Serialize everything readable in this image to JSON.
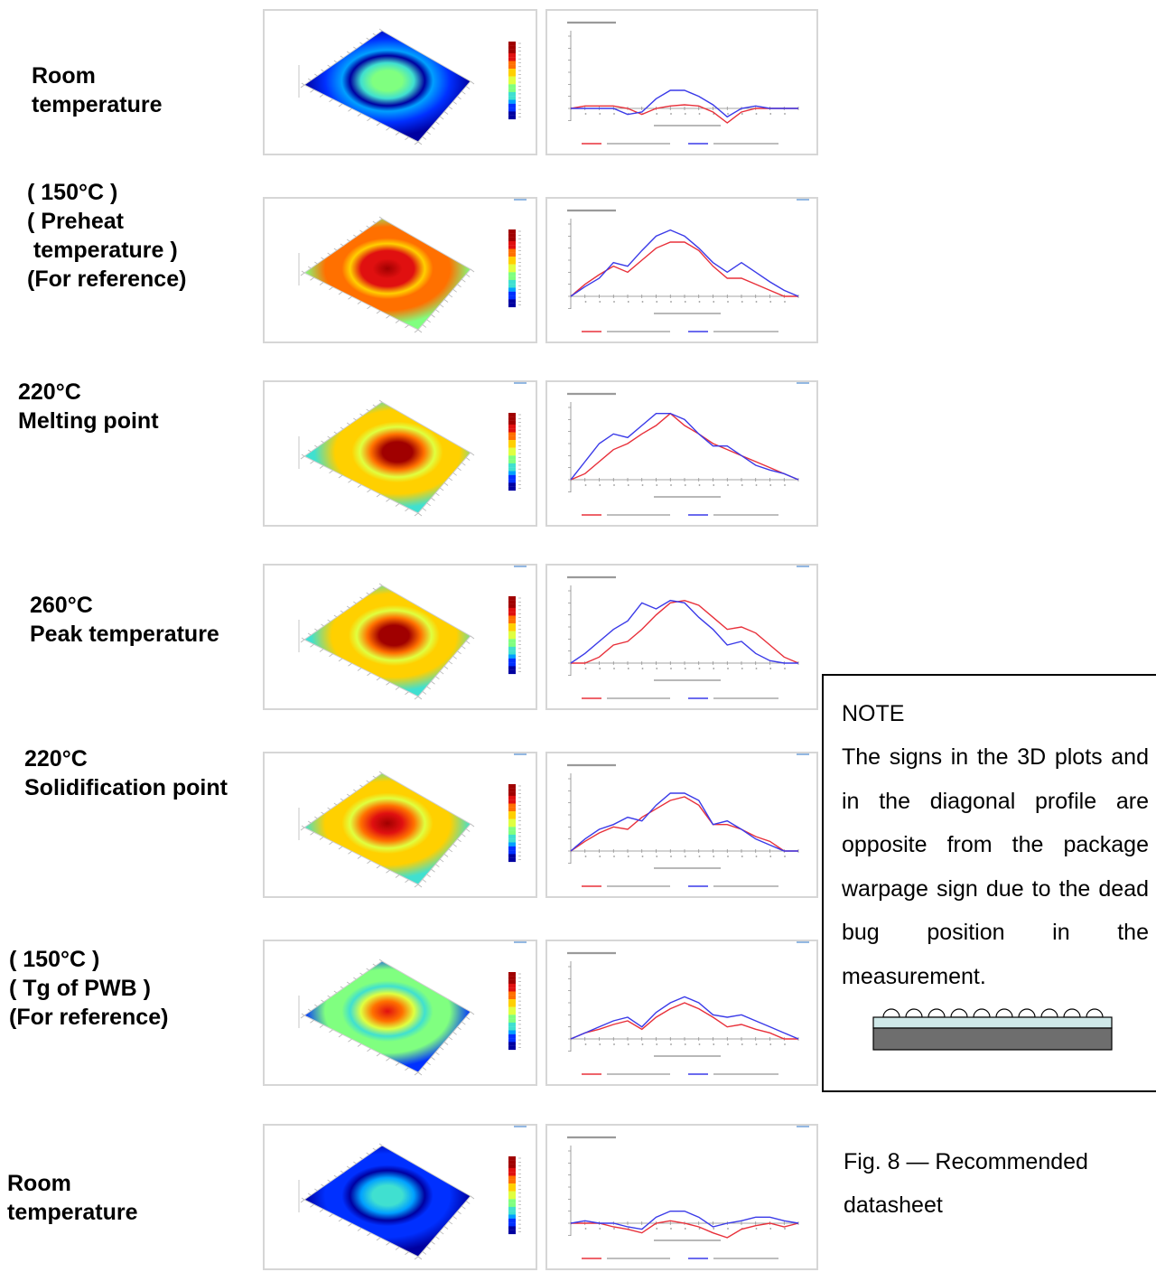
{
  "rows": [
    {
      "label": "Room\ntemperature",
      "level": 0.15,
      "hot": 0.45,
      "spread": 1.0,
      "shift": 0.0,
      "chart": {
        "type": "line",
        "x": [
          0,
          1,
          2,
          3,
          4,
          5,
          6,
          7,
          8,
          9,
          10,
          11,
          12,
          13,
          14,
          15,
          16
        ],
        "series": [
          {
            "color": "#e8303a",
            "values": [
              0,
              2,
              2,
              2,
              0,
              -5,
              0,
              2,
              3,
              2,
              -3,
              -12,
              -3,
              0,
              0,
              0,
              0
            ]
          },
          {
            "color": "#3a3ae8",
            "values": [
              0,
              0,
              0,
              0,
              -5,
              -3,
              8,
              15,
              15,
              10,
              3,
              -7,
              0,
              2,
              0,
              0,
              0
            ]
          }
        ]
      }
    },
    {
      "label": "( 150°C )\n( Preheat\n temperature )\n(For reference)",
      "level": 0.7,
      "hot": 0.95,
      "spread": 1.4,
      "shift": 0.0,
      "chart": {
        "type": "line",
        "x": [
          0,
          1,
          2,
          3,
          4,
          5,
          6,
          7,
          8,
          9,
          10,
          11,
          12,
          13,
          14,
          15,
          16
        ],
        "series": [
          {
            "color": "#e8303a",
            "values": [
              0,
              10,
              18,
              25,
              20,
              30,
              40,
              45,
              45,
              38,
              25,
              15,
              15,
              10,
              5,
              0,
              0
            ]
          },
          {
            "color": "#3a3ae8",
            "values": [
              0,
              8,
              15,
              28,
              25,
              38,
              50,
              55,
              50,
              40,
              28,
              20,
              28,
              20,
              12,
              5,
              0
            ]
          }
        ]
      }
    },
    {
      "label": "220°C\nMelting point",
      "level": 0.6,
      "hot": 1.0,
      "spread": 1.5,
      "shift": 0.06,
      "chart": {
        "type": "line",
        "x": [
          0,
          1,
          2,
          3,
          4,
          5,
          6,
          7,
          8,
          9,
          10,
          11,
          12,
          13,
          14,
          15,
          16
        ],
        "series": [
          {
            "color": "#e8303a",
            "values": [
              0,
              5,
              15,
              25,
              30,
              38,
              45,
              55,
              45,
              38,
              30,
              25,
              20,
              15,
              10,
              5,
              0
            ]
          },
          {
            "color": "#3a3ae8",
            "values": [
              0,
              15,
              30,
              38,
              35,
              45,
              55,
              55,
              50,
              38,
              28,
              28,
              20,
              12,
              8,
              5,
              0
            ]
          }
        ]
      }
    },
    {
      "label": "260°C\nPeak temperature",
      "level": 0.6,
      "hot": 1.0,
      "spread": 1.5,
      "shift": 0.04,
      "chart": {
        "type": "line",
        "x": [
          0,
          1,
          2,
          3,
          4,
          5,
          6,
          7,
          8,
          9,
          10,
          11,
          12,
          13,
          14,
          15,
          16
        ],
        "series": [
          {
            "color": "#e8303a",
            "values": [
              0,
              0,
              5,
              15,
              18,
              28,
              40,
              50,
              52,
              48,
              38,
              28,
              30,
              25,
              15,
              5,
              0
            ]
          },
          {
            "color": "#3a3ae8",
            "values": [
              0,
              8,
              18,
              28,
              35,
              50,
              45,
              52,
              50,
              38,
              28,
              15,
              18,
              8,
              2,
              0,
              0
            ]
          }
        ]
      }
    },
    {
      "label": "220°C\nSolidification point",
      "level": 0.62,
      "hot": 0.95,
      "spread": 1.35,
      "shift": 0.0,
      "chart": {
        "type": "line",
        "x": [
          0,
          1,
          2,
          3,
          4,
          5,
          6,
          7,
          8,
          9,
          10,
          11,
          12,
          13,
          14,
          15,
          16
        ],
        "series": [
          {
            "color": "#e8303a",
            "values": [
              0,
              8,
              15,
              20,
              18,
              28,
              35,
              42,
              45,
              38,
              22,
              22,
              18,
              12,
              8,
              0,
              0
            ]
          },
          {
            "color": "#3a3ae8",
            "values": [
              0,
              10,
              18,
              22,
              28,
              25,
              38,
              48,
              48,
              42,
              22,
              25,
              18,
              10,
              5,
              0,
              0
            ]
          }
        ]
      }
    },
    {
      "label": "( 150°C )\n( Tg of PWB )\n(For reference)",
      "level": 0.4,
      "hot": 0.85,
      "spread": 1.1,
      "shift": 0.0,
      "chart": {
        "type": "line",
        "x": [
          0,
          1,
          2,
          3,
          4,
          5,
          6,
          7,
          8,
          9,
          10,
          11,
          12,
          13,
          14,
          15,
          16
        ],
        "series": [
          {
            "color": "#e8303a",
            "values": [
              0,
              5,
              8,
              12,
              15,
              8,
              18,
              25,
              30,
              25,
              18,
              10,
              12,
              8,
              5,
              0,
              0
            ]
          },
          {
            "color": "#3a3ae8",
            "values": [
              0,
              5,
              10,
              15,
              18,
              10,
              22,
              30,
              35,
              30,
              20,
              18,
              20,
              15,
              10,
              5,
              0
            ]
          }
        ]
      }
    },
    {
      "label": "Room\ntemperature",
      "level": 0.12,
      "hot": 0.35,
      "spread": 1.0,
      "shift": 0.0,
      "chart": {
        "type": "line",
        "x": [
          0,
          1,
          2,
          3,
          4,
          5,
          6,
          7,
          8,
          9,
          10,
          11,
          12,
          13,
          14,
          15,
          16
        ],
        "series": [
          {
            "color": "#e8303a",
            "values": [
              0,
              0,
              0,
              -3,
              -5,
              -8,
              0,
              2,
              0,
              -3,
              -8,
              -12,
              -5,
              -2,
              0,
              -3,
              0
            ]
          },
          {
            "color": "#3a3ae8",
            "values": [
              0,
              2,
              0,
              0,
              -3,
              -5,
              5,
              10,
              10,
              5,
              -3,
              0,
              2,
              5,
              5,
              2,
              0
            ]
          }
        ]
      }
    }
  ],
  "note": {
    "title": "NOTE",
    "text": "The signs in the 3D plots and in the diagonal profile are opposite from the package warpage sign due to the dead bug position in the measurement."
  },
  "caption": "Fig. 8 — Recommended datasheet",
  "colors": {
    "scale": [
      "#0000a0",
      "#0030ff",
      "#00a0ff",
      "#40e0d0",
      "#80ff80",
      "#e0ff40",
      "#ffd000",
      "#ff7000",
      "#e01010",
      "#a00000"
    ]
  }
}
